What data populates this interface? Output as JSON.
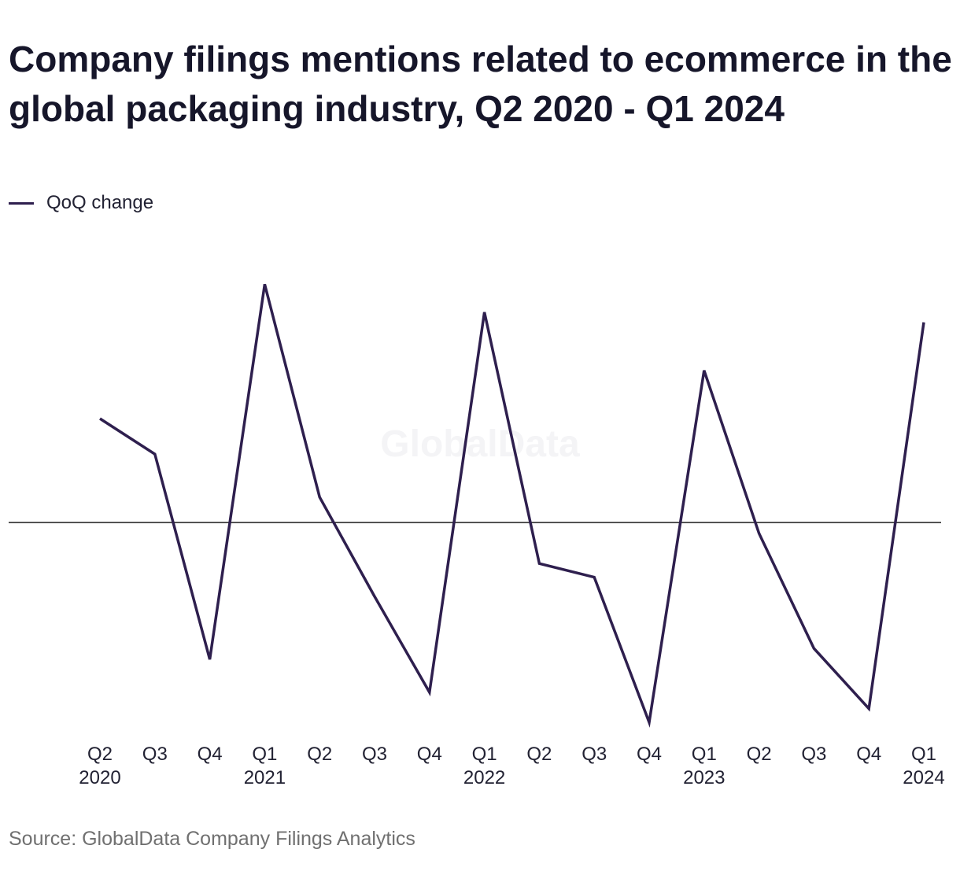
{
  "colors": {
    "line": "#2e1f4e",
    "zero_line": "#1a1a1a",
    "watermark": "#f4f4f6"
  },
  "watermark": "GlobalData",
  "source": "Source: GlobalData Company Filings Analytics",
  "chart_data": {
    "type": "line",
    "title": "Company filings mentions related to ecommerce in the global packaging industry, Q2 2020 - Q1 2024",
    "xlabel": "",
    "ylabel": "",
    "legend_position": "top-left",
    "grid": false,
    "zero_line": true,
    "ylim": [
      -0.75,
      1.0
    ],
    "categories": [
      [
        "Q2",
        "2020"
      ],
      [
        "Q3",
        ""
      ],
      [
        "Q4",
        ""
      ],
      [
        "Q1",
        "2021"
      ],
      [
        "Q2",
        ""
      ],
      [
        "Q3",
        ""
      ],
      [
        "Q4",
        ""
      ],
      [
        "Q1",
        "2022"
      ],
      [
        "Q2",
        ""
      ],
      [
        "Q3",
        ""
      ],
      [
        "Q4",
        ""
      ],
      [
        "Q1",
        "2023"
      ],
      [
        "Q2",
        ""
      ],
      [
        "Q3",
        ""
      ],
      [
        "Q4",
        ""
      ],
      [
        "Q1",
        "2024"
      ]
    ],
    "series": [
      {
        "name": "QoQ change",
        "values": [
          0.41,
          0.27,
          -0.5,
          0.94,
          0.1,
          -0.27,
          -0.62,
          0.83,
          -0.15,
          -0.2,
          -0.73,
          0.6,
          -0.04,
          -0.46,
          -0.68,
          0.79
        ]
      }
    ]
  }
}
